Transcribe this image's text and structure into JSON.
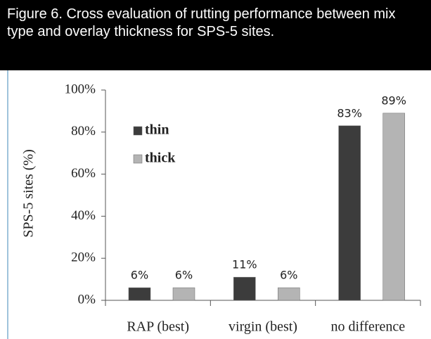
{
  "chart_data": {
    "type": "bar",
    "title": "Figure 6. Cross evaluation of rutting performance between mix type and overlay thickness for SPS-5 sites.",
    "ylabel": "SPS-5 sites (%)",
    "categories": [
      "RAP (best)",
      "virgin (best)",
      "no difference"
    ],
    "series": [
      {
        "name": "thin",
        "color": "#3c3c3c",
        "values": [
          6,
          11,
          83
        ],
        "value_labels": [
          "6%",
          "11%",
          "83%"
        ]
      },
      {
        "name": "thick",
        "color": "#b4b4b4",
        "values": [
          6,
          6,
          89
        ],
        "value_labels": [
          "6%",
          "6%",
          "89%"
        ]
      }
    ],
    "ylim": [
      0,
      100
    ],
    "yticks": [
      {
        "value": 0,
        "label": "0%"
      },
      {
        "value": 20,
        "label": "20%"
      },
      {
        "value": 40,
        "label": "40%"
      },
      {
        "value": 60,
        "label": "60%"
      },
      {
        "value": 80,
        "label": "80%"
      },
      {
        "value": 100,
        "label": "100%"
      }
    ]
  }
}
